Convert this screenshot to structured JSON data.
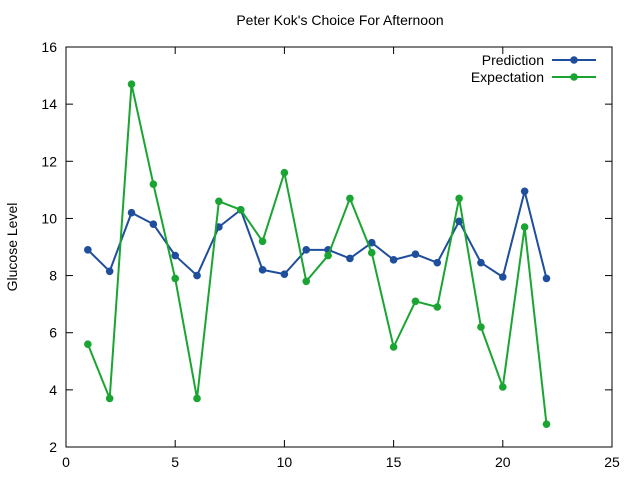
{
  "chart_data": {
    "type": "line",
    "title": "Peter Kok's Choice For Afternoon",
    "xlabel": "",
    "ylabel": "Glucose Level",
    "xlim": [
      0,
      25
    ],
    "ylim": [
      2,
      16
    ],
    "xticks": [
      0,
      5,
      10,
      15,
      20,
      25
    ],
    "yticks": [
      2,
      4,
      6,
      8,
      10,
      12,
      14,
      16
    ],
    "grid": false,
    "legend_position": "top-right",
    "series": [
      {
        "name": "Prediction",
        "color": "#1f4e9c",
        "x": [
          1,
          2,
          3,
          4,
          5,
          6,
          7,
          8,
          9,
          10,
          11,
          12,
          13,
          14,
          15,
          16,
          17,
          18,
          19,
          20,
          21,
          22
        ],
        "y": [
          8.9,
          8.15,
          10.2,
          9.8,
          8.7,
          8.0,
          9.7,
          10.3,
          8.2,
          8.05,
          8.9,
          8.9,
          8.6,
          9.15,
          8.55,
          8.75,
          8.45,
          9.9,
          8.45,
          7.95,
          10.95,
          7.9
        ]
      },
      {
        "name": "Expectation",
        "color": "#1aa532",
        "x": [
          1,
          2,
          3,
          4,
          5,
          6,
          7,
          8,
          9,
          10,
          11,
          12,
          13,
          14,
          15,
          16,
          17,
          18,
          19,
          20,
          21,
          22
        ],
        "y": [
          5.6,
          3.7,
          14.7,
          11.2,
          7.9,
          3.7,
          10.6,
          10.3,
          9.2,
          11.6,
          7.8,
          8.7,
          10.7,
          8.8,
          5.5,
          7.1,
          6.9,
          10.7,
          6.2,
          4.1,
          9.7,
          2.8
        ]
      }
    ]
  }
}
